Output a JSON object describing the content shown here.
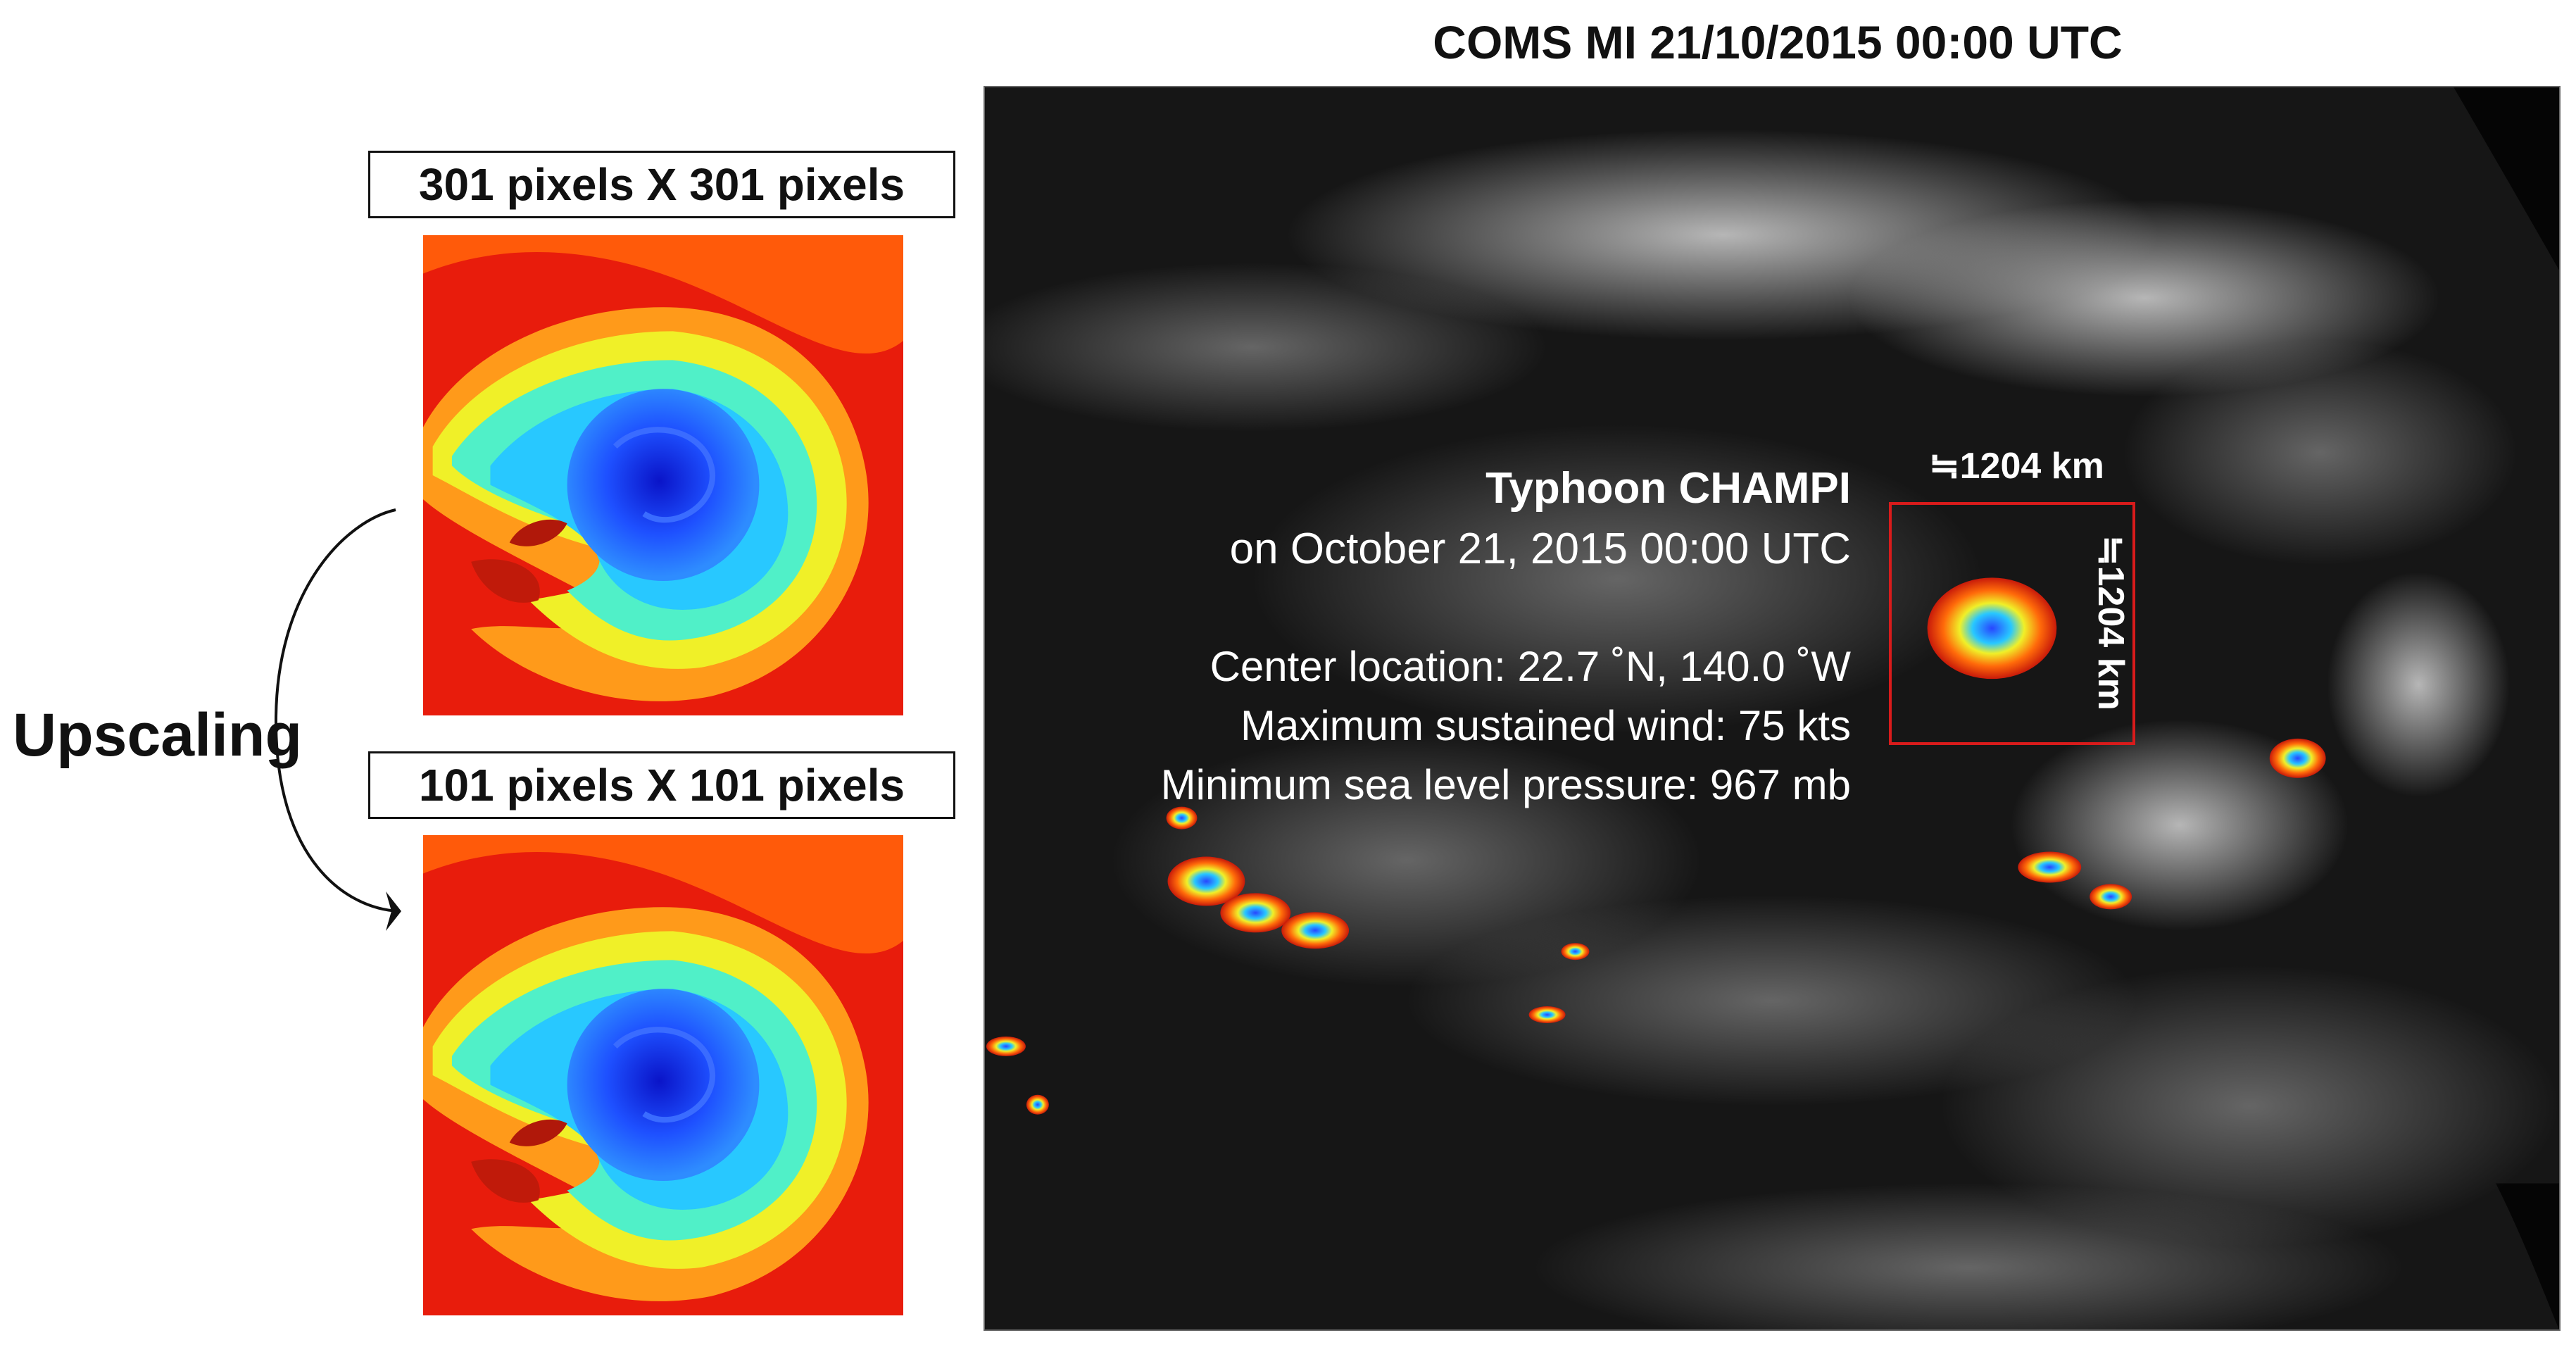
{
  "main_title": "COMS MI 21/10/2015 00:00 UTC",
  "left_panel": {
    "top_label": "301 pixels X 301 pixels",
    "bottom_label": "101 pixels X 101 pixels",
    "arrow_label": "Upscaling"
  },
  "typhoon_info": {
    "name": "Typhoon CHAMPI",
    "date": "on October 21, 2015 00:00 UTC",
    "center_location": "Center location: 22.7 ˚N, 140.0 ˚W",
    "max_wind": "Maximum sustained wind: 75 kts",
    "min_pressure": "Minimum sea level pressure: 967 mb"
  },
  "box_dimensions": {
    "width_label": "≒1204 km",
    "height_label": "≒1204 km"
  },
  "colors": {
    "box_outline": "#d81b1b",
    "satellite_background": "#151515",
    "colormap": [
      "#0a14c8",
      "#1e50ff",
      "#28c8ff",
      "#50f0c8",
      "#f0f028",
      "#ff8c00",
      "#e81c0c"
    ]
  }
}
